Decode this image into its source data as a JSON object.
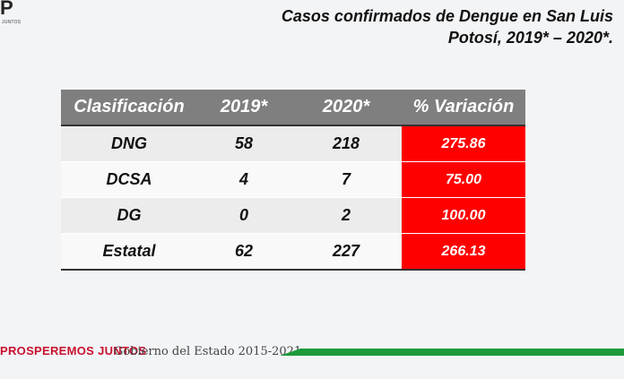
{
  "header": {
    "logo_mark": "P",
    "logo_sub": "JUNTOS",
    "title": "Casos confirmados de Dengue en San Luis Potosí, 2019* – 2020*."
  },
  "table": {
    "headers": [
      "Clasificación",
      "2019*",
      "2020*",
      "% Variación"
    ],
    "rows": [
      [
        "DNG",
        "58",
        "218",
        "275.86"
      ],
      [
        "DCSA",
        "4",
        "7",
        "75.00"
      ],
      [
        "DG",
        "0",
        "2",
        "100.00"
      ],
      [
        "Estatal",
        "62",
        "227",
        "266.13"
      ]
    ]
  },
  "colors": {
    "header_bg": "#7f7f7f",
    "variation_bg": "#ff0000",
    "brand_red": "#c8102e",
    "bar_green": "#1d9a3a"
  },
  "footer": {
    "brand": "PROSPEREMOS JUNTOS",
    "government": "Gobierno del Estado 2015-2021"
  }
}
